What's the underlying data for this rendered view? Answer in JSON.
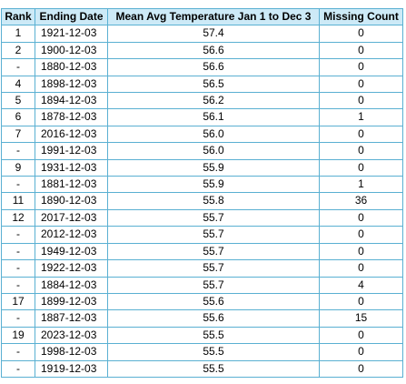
{
  "columns": {
    "rank": "Rank",
    "ending_date": "Ending Date",
    "mean_avg_temp": "Mean Avg Temperature Jan 1 to Dec 3",
    "missing_count": "Missing Count"
  },
  "rows": [
    {
      "rank": "1",
      "ending_date": "1921-12-03",
      "mean_avg_temp": "57.4",
      "missing_count": "0"
    },
    {
      "rank": "2",
      "ending_date": "1900-12-03",
      "mean_avg_temp": "56.6",
      "missing_count": "0"
    },
    {
      "rank": "-",
      "ending_date": "1880-12-03",
      "mean_avg_temp": "56.6",
      "missing_count": "0"
    },
    {
      "rank": "4",
      "ending_date": "1898-12-03",
      "mean_avg_temp": "56.5",
      "missing_count": "0"
    },
    {
      "rank": "5",
      "ending_date": "1894-12-03",
      "mean_avg_temp": "56.2",
      "missing_count": "0"
    },
    {
      "rank": "6",
      "ending_date": "1878-12-03",
      "mean_avg_temp": "56.1",
      "missing_count": "1"
    },
    {
      "rank": "7",
      "ending_date": "2016-12-03",
      "mean_avg_temp": "56.0",
      "missing_count": "0"
    },
    {
      "rank": "-",
      "ending_date": "1991-12-03",
      "mean_avg_temp": "56.0",
      "missing_count": "0"
    },
    {
      "rank": "9",
      "ending_date": "1931-12-03",
      "mean_avg_temp": "55.9",
      "missing_count": "0"
    },
    {
      "rank": "-",
      "ending_date": "1881-12-03",
      "mean_avg_temp": "55.9",
      "missing_count": "1"
    },
    {
      "rank": "11",
      "ending_date": "1890-12-03",
      "mean_avg_temp": "55.8",
      "missing_count": "36"
    },
    {
      "rank": "12",
      "ending_date": "2017-12-03",
      "mean_avg_temp": "55.7",
      "missing_count": "0"
    },
    {
      "rank": "-",
      "ending_date": "2012-12-03",
      "mean_avg_temp": "55.7",
      "missing_count": "0"
    },
    {
      "rank": "-",
      "ending_date": "1949-12-03",
      "mean_avg_temp": "55.7",
      "missing_count": "0"
    },
    {
      "rank": "-",
      "ending_date": "1922-12-03",
      "mean_avg_temp": "55.7",
      "missing_count": "0"
    },
    {
      "rank": "-",
      "ending_date": "1884-12-03",
      "mean_avg_temp": "55.7",
      "missing_count": "4"
    },
    {
      "rank": "17",
      "ending_date": "1899-12-03",
      "mean_avg_temp": "55.6",
      "missing_count": "0"
    },
    {
      "rank": "-",
      "ending_date": "1887-12-03",
      "mean_avg_temp": "55.6",
      "missing_count": "15"
    },
    {
      "rank": "19",
      "ending_date": "2023-12-03",
      "mean_avg_temp": "55.5",
      "missing_count": "0"
    },
    {
      "rank": "-",
      "ending_date": "1998-12-03",
      "mean_avg_temp": "55.5",
      "missing_count": "0"
    },
    {
      "rank": "-",
      "ending_date": "1919-12-03",
      "mean_avg_temp": "55.5",
      "missing_count": "0"
    }
  ],
  "colors": {
    "header_background": "#cdeaf7",
    "border": "#5ab0d2",
    "text": "#000000"
  }
}
